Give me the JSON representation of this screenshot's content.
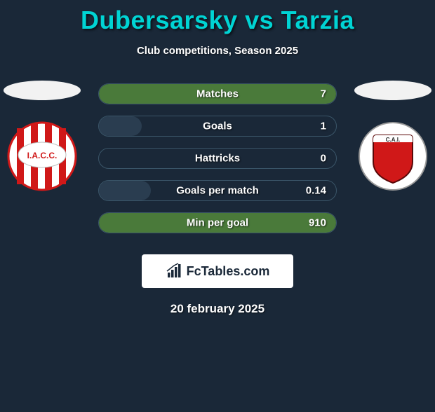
{
  "title": "Dubersarsky vs Tarzia",
  "subtitle": "Club competitions, Season 2025",
  "date": "20 february 2025",
  "branding": {
    "text": "FcTables.com",
    "background": "#ffffff",
    "text_color": "#1a2838"
  },
  "colors": {
    "background": "#1a2838",
    "title_color": "#00d4d4",
    "text_color": "#ffffff",
    "bar_border": "#3a5568",
    "fill_green": "#4a7a3a",
    "fill_dark": "#2a3d50"
  },
  "player_left": {
    "avatar_bg": "#f2f2f2",
    "club": {
      "name": "Instituto ACC",
      "label": "I.A.C.C.",
      "bg": "#ffffff",
      "stripe": "#d01818"
    }
  },
  "player_right": {
    "avatar_bg": "#f2f2f2",
    "club": {
      "name": "Independiente",
      "label": "C.A.I.",
      "bg": "#ffffff",
      "shield": "#d01818"
    }
  },
  "stats": [
    {
      "label": "Matches",
      "value": "7",
      "fill_pct": 100,
      "fill_color": "#4a7a3a"
    },
    {
      "label": "Goals",
      "value": "1",
      "fill_pct": 18,
      "fill_color": "#2a3d50"
    },
    {
      "label": "Hattricks",
      "value": "0",
      "fill_pct": 0,
      "fill_color": "#2a3d50"
    },
    {
      "label": "Goals per match",
      "value": "0.14",
      "fill_pct": 22,
      "fill_color": "#2a3d50"
    },
    {
      "label": "Min per goal",
      "value": "910",
      "fill_pct": 100,
      "fill_color": "#4a7a3a"
    }
  ]
}
